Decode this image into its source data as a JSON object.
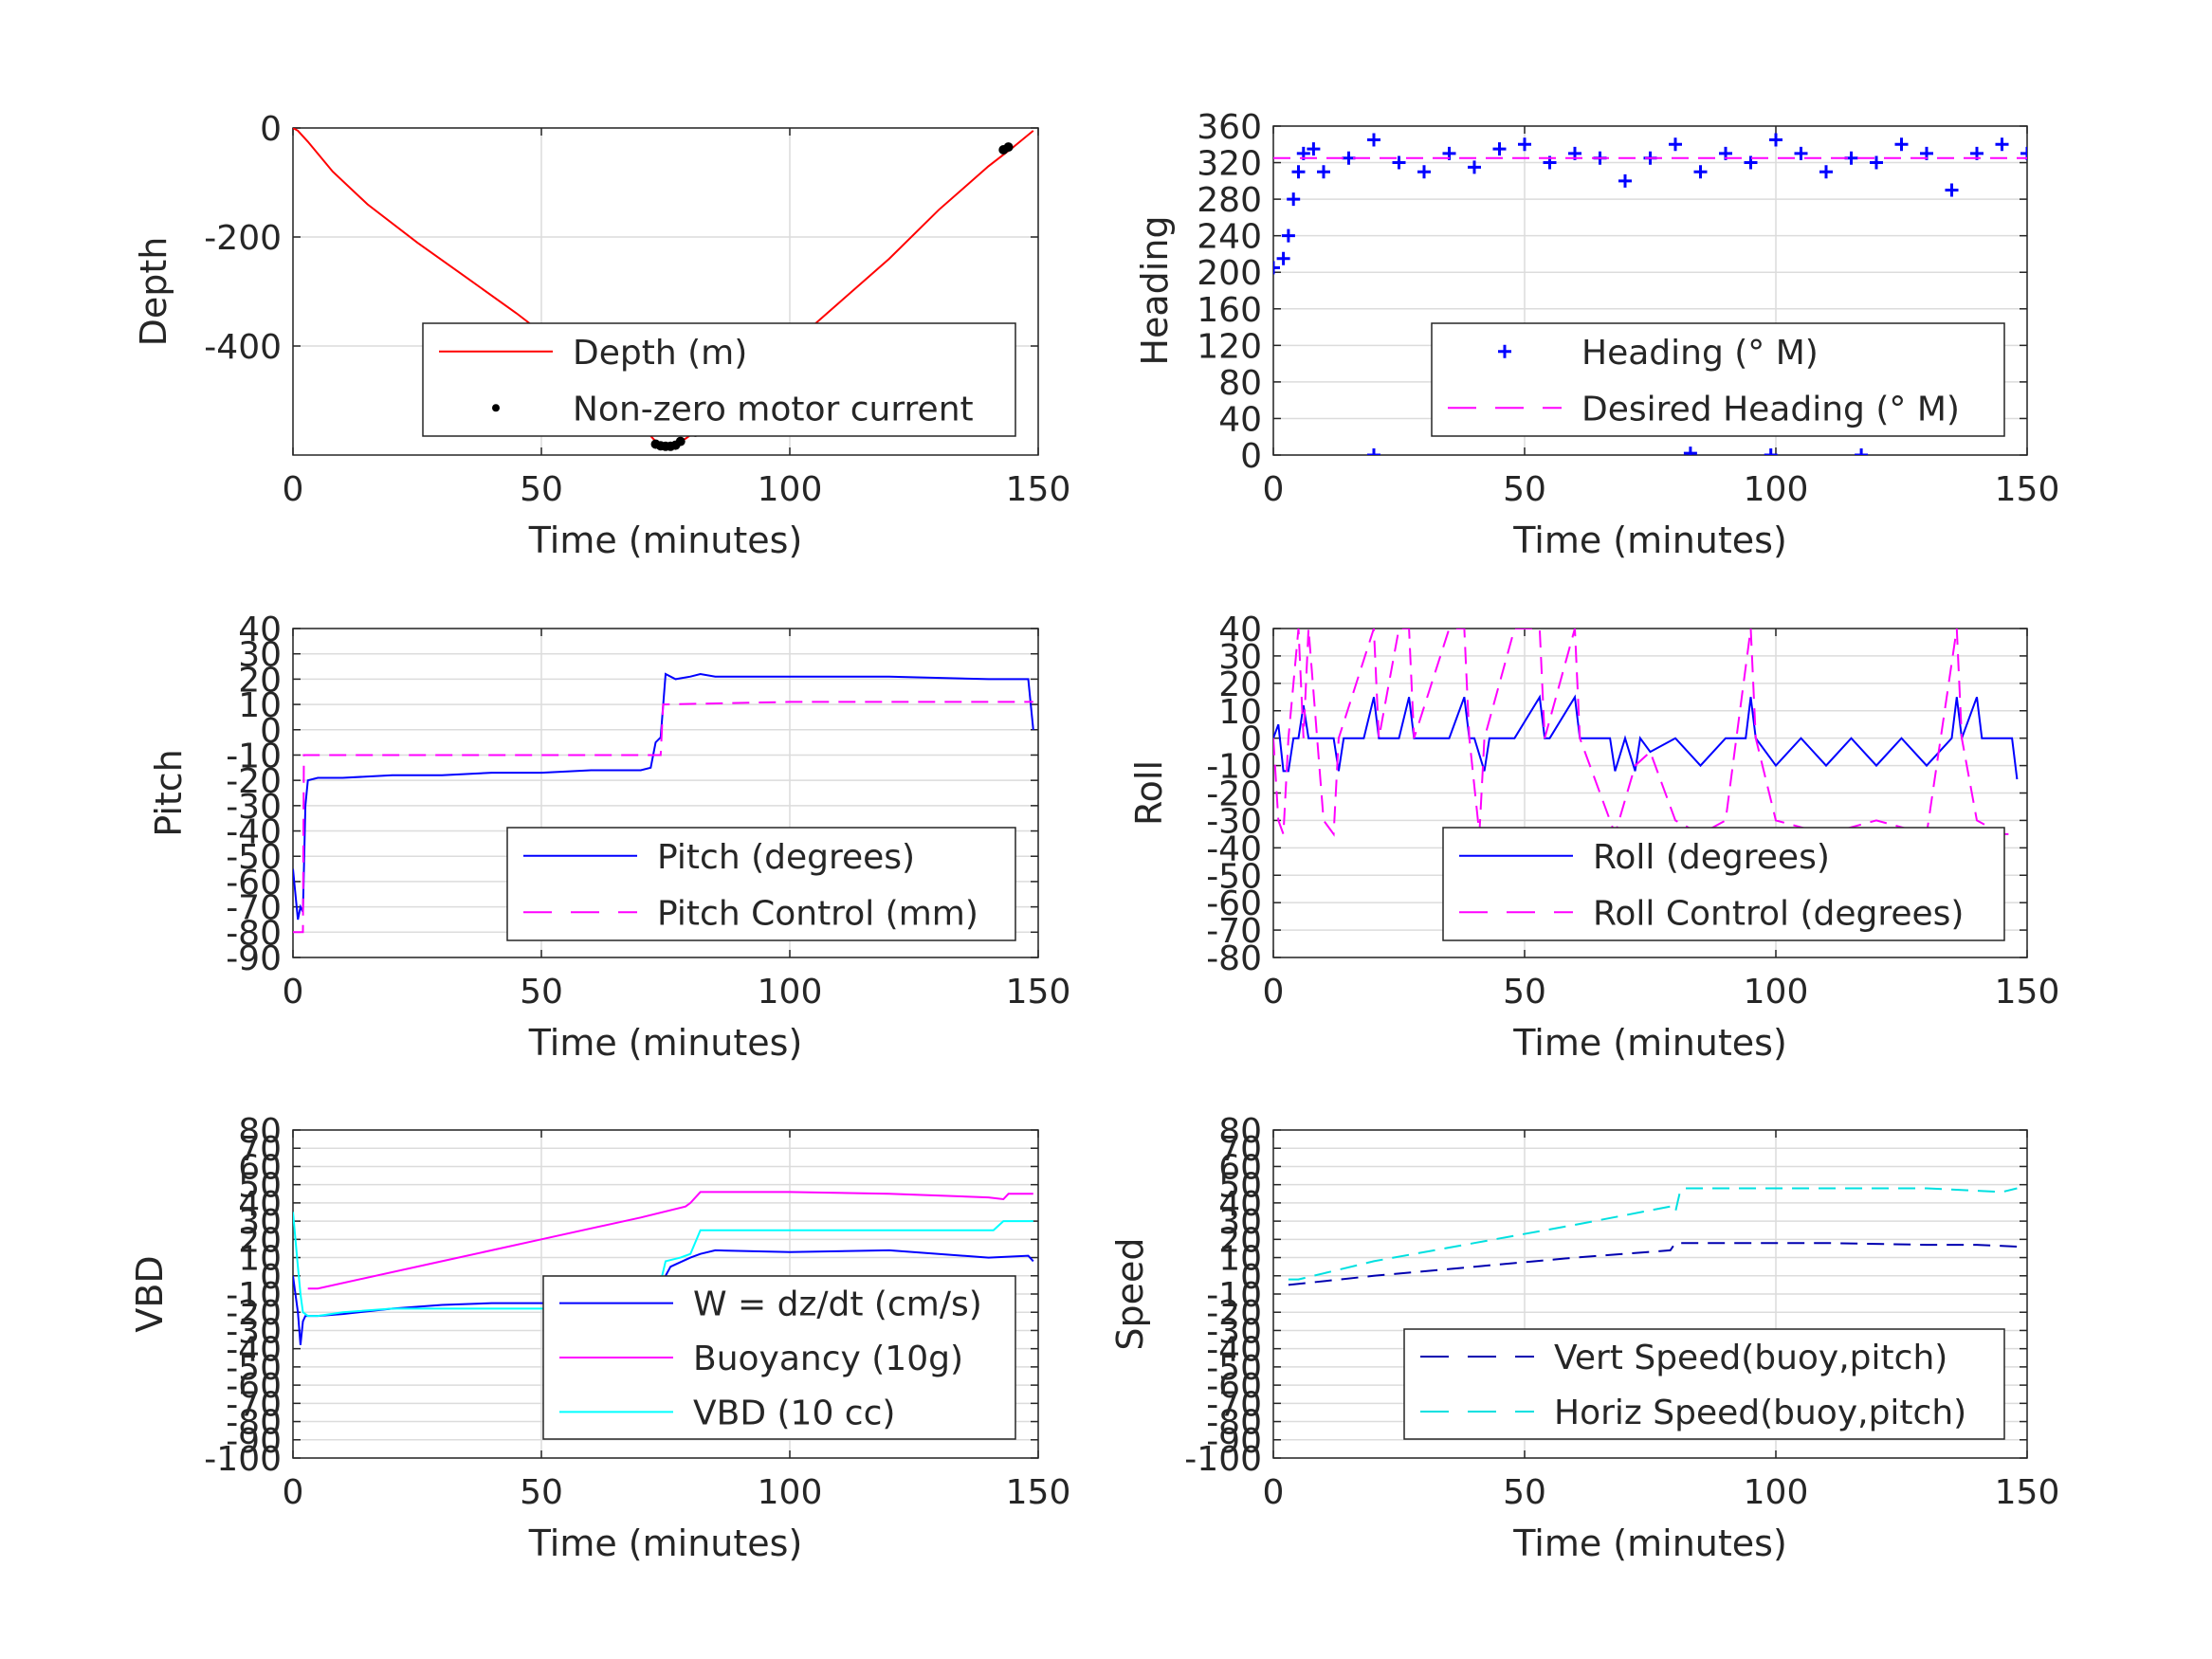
{
  "chart_data": [
    {
      "id": "depth",
      "type": "line",
      "xlabel": "Time (minutes)",
      "ylabel": "Depth",
      "xlim": [
        0,
        150
      ],
      "ylim": [
        -600,
        0
      ],
      "xticks": [
        0,
        50,
        100,
        150
      ],
      "yticks": [
        -400,
        -200,
        0
      ],
      "grid": true,
      "legend_position": "bottom-right",
      "series": [
        {
          "name": "Depth (m)",
          "color": "#ff0000",
          "style": "solid",
          "x": [
            0,
            1,
            3,
            8,
            15,
            25,
            35,
            45,
            55,
            65,
            70,
            73,
            75,
            77,
            79,
            82,
            90,
            100,
            110,
            120,
            130,
            140,
            145,
            149
          ],
          "y": [
            0,
            -5,
            -25,
            -80,
            -140,
            -210,
            -275,
            -340,
            -410,
            -490,
            -545,
            -575,
            -585,
            -580,
            -570,
            -550,
            -480,
            -400,
            -320,
            -240,
            -150,
            -70,
            -35,
            -5
          ]
        },
        {
          "name": "Non-zero motor current",
          "color": "#000000",
          "style": "dot",
          "x": [
            73,
            74,
            75,
            76,
            77,
            78,
            81,
            82,
            143,
            144
          ],
          "y": [
            -580,
            -583,
            -584,
            -584,
            -582,
            -575,
            -558,
            -552,
            -40,
            -35
          ]
        }
      ]
    },
    {
      "id": "heading",
      "type": "line",
      "xlabel": "Time (minutes)",
      "ylabel": "Heading",
      "xlim": [
        0,
        150
      ],
      "ylim": [
        0,
        360
      ],
      "xticks": [
        0,
        50,
        100,
        150
      ],
      "yticks": [
        0,
        40,
        80,
        120,
        160,
        200,
        240,
        280,
        320,
        360
      ],
      "grid": true,
      "legend_position": "bottom-right",
      "series": [
        {
          "name": "Heading (° M)",
          "color": "#0000ff",
          "style": "plus",
          "x": [
            0,
            2,
            3,
            4,
            5,
            6,
            8,
            10,
            15,
            20,
            25,
            30,
            35,
            40,
            45,
            50,
            55,
            60,
            65,
            70,
            75,
            80,
            85,
            90,
            95,
            100,
            105,
            110,
            115,
            120,
            125,
            130,
            135,
            140,
            145,
            150,
            20,
            83,
            99,
            117
          ],
          "y": [
            205,
            215,
            240,
            280,
            310,
            330,
            335,
            310,
            325,
            345,
            320,
            310,
            330,
            315,
            335,
            340,
            320,
            330,
            325,
            300,
            325,
            340,
            310,
            330,
            320,
            345,
            330,
            310,
            325,
            320,
            340,
            330,
            290,
            330,
            340,
            330,
            0,
            2,
            0,
            0
          ]
        },
        {
          "name": "Desired Heading (° M)",
          "color": "#ff00ff",
          "style": "dashed",
          "x": [
            0,
            150
          ],
          "y": [
            325,
            325
          ]
        }
      ]
    },
    {
      "id": "pitch",
      "type": "line",
      "xlabel": "Time (minutes)",
      "ylabel": "Pitch",
      "xlim": [
        0,
        150
      ],
      "ylim": [
        -90,
        40
      ],
      "xticks": [
        0,
        50,
        100,
        150
      ],
      "yticks": [
        -90,
        -80,
        -70,
        -60,
        -50,
        -40,
        -30,
        -20,
        -10,
        0,
        10,
        20,
        30,
        40
      ],
      "grid": true,
      "legend_position": "bottom-right",
      "series": [
        {
          "name": "Pitch (degrees)",
          "color": "#0000ff",
          "style": "solid",
          "x": [
            0,
            0.5,
            1,
            1.5,
            2,
            2.5,
            3,
            5,
            10,
            20,
            30,
            40,
            50,
            60,
            70,
            72,
            73,
            74,
            75,
            77,
            80,
            82,
            85,
            100,
            120,
            140,
            148,
            149
          ],
          "y": [
            -55,
            -65,
            -75,
            -70,
            -72,
            -30,
            -20,
            -19,
            -19,
            -18,
            -18,
            -17,
            -17,
            -16,
            -16,
            -15,
            -5,
            -3,
            22,
            20,
            21,
            22,
            21,
            21,
            21,
            20,
            20,
            0
          ]
        },
        {
          "name": "Pitch Control (mm)",
          "color": "#ff00ff",
          "style": "dashed",
          "x": [
            0,
            2,
            2.2,
            74,
            74.5,
            100,
            149
          ],
          "y": [
            -80,
            -80,
            -10,
            -10,
            10,
            11,
            11
          ]
        }
      ]
    },
    {
      "id": "roll",
      "type": "line",
      "xlabel": "Time (minutes)",
      "ylabel": "Roll",
      "xlim": [
        0,
        150
      ],
      "ylim": [
        -80,
        40
      ],
      "xticks": [
        0,
        50,
        100,
        150
      ],
      "yticks": [
        -80,
        -70,
        -60,
        -50,
        -40,
        -30,
        -20,
        -10,
        0,
        10,
        20,
        30,
        40
      ],
      "grid": true,
      "legend_position": "bottom-right",
      "series": [
        {
          "name": "Roll (degrees)",
          "color": "#0000ff",
          "style": "solid",
          "x": [
            0,
            1,
            2,
            3,
            4,
            5,
            6,
            7,
            8,
            9,
            12,
            13,
            14,
            18,
            20,
            21,
            22,
            25,
            27,
            28,
            35,
            38,
            39,
            40,
            42,
            43,
            48,
            53,
            54,
            55,
            60,
            61,
            62,
            65,
            67,
            68,
            70,
            72,
            73,
            75,
            80,
            85,
            90,
            94,
            95,
            96,
            100,
            105,
            110,
            115,
            120,
            125,
            130,
            135,
            136,
            137,
            140,
            141,
            145,
            147,
            148
          ],
          "y": [
            0,
            5,
            -12,
            -12,
            0,
            0,
            12,
            0,
            0,
            0,
            0,
            -12,
            0,
            0,
            15,
            0,
            0,
            0,
            15,
            0,
            0,
            15,
            0,
            0,
            -12,
            0,
            0,
            15,
            0,
            0,
            15,
            0,
            0,
            0,
            0,
            -12,
            0,
            -12,
            0,
            -5,
            0,
            -10,
            0,
            0,
            15,
            0,
            -10,
            0,
            -10,
            0,
            -10,
            0,
            -10,
            0,
            15,
            0,
            15,
            0,
            0,
            0,
            -15
          ]
        },
        {
          "name": "Roll Control (degrees)",
          "color": "#ff00ff",
          "style": "dashed",
          "x": [
            0,
            1,
            2,
            3,
            5,
            6,
            7,
            10,
            12,
            13,
            20,
            21,
            25,
            27,
            28,
            35,
            38,
            39,
            41,
            42,
            48,
            53,
            54,
            60,
            61,
            68,
            72,
            75,
            80,
            85,
            90,
            95,
            96,
            100,
            110,
            120,
            130,
            136,
            137,
            140,
            145,
            148
          ],
          "y": [
            0,
            -30,
            -35,
            0,
            40,
            0,
            40,
            -30,
            -35,
            0,
            40,
            0,
            40,
            40,
            0,
            40,
            40,
            0,
            -35,
            0,
            40,
            40,
            0,
            40,
            0,
            -35,
            -10,
            -5,
            -30,
            -35,
            -30,
            40,
            0,
            -30,
            -35,
            -30,
            -35,
            40,
            0,
            -30,
            -35,
            -35
          ]
        }
      ]
    },
    {
      "id": "vbd",
      "type": "line",
      "xlabel": "Time (minutes)",
      "ylabel": "VBD",
      "xlim": [
        0,
        150
      ],
      "ylim": [
        -100,
        80
      ],
      "xticks": [
        0,
        50,
        100,
        150
      ],
      "yticks": [
        -100,
        -90,
        -80,
        -70,
        -60,
        -50,
        -40,
        -30,
        -20,
        -10,
        0,
        10,
        20,
        30,
        40,
        50,
        60,
        70,
        80
      ],
      "grid": true,
      "legend_position": "bottom-right",
      "series": [
        {
          "name": "W = dz/dt (cm/s)",
          "color": "#0000ff",
          "style": "solid",
          "x": [
            0,
            0.5,
            1,
            1.5,
            2,
            2.5,
            3,
            5,
            10,
            20,
            30,
            40,
            50,
            60,
            70,
            72,
            74,
            76,
            80,
            82,
            85,
            100,
            120,
            140,
            148,
            149
          ],
          "y": [
            0,
            -10,
            -20,
            -38,
            -25,
            -22,
            -22,
            -22,
            -21,
            -18,
            -16,
            -15,
            -15,
            -15,
            -15,
            -14,
            -5,
            5,
            10,
            12,
            14,
            13,
            14,
            10,
            11,
            8
          ]
        },
        {
          "name": "Buoyancy (10g)",
          "color": "#ff00ff",
          "style": "solid",
          "x": [
            3,
            5,
            30,
            50,
            70,
            79,
            80,
            82,
            100,
            120,
            140,
            143,
            144,
            149
          ],
          "y": [
            -7,
            -7,
            8,
            20,
            32,
            38,
            40,
            46,
            46,
            45,
            43,
            42,
            45,
            45
          ]
        },
        {
          "name": "VBD (10 cc)",
          "color": "#00ffff",
          "style": "solid",
          "x": [
            0,
            0.5,
            1,
            1.5,
            2,
            3,
            5,
            10,
            20,
            70,
            73,
            75,
            78,
            80,
            82,
            85,
            100,
            140,
            141,
            143,
            149
          ],
          "y": [
            35,
            20,
            5,
            -10,
            -20,
            -22,
            -22,
            -20,
            -18,
            -18,
            -15,
            8,
            10,
            12,
            25,
            25,
            25,
            25,
            25,
            30,
            30
          ]
        }
      ]
    },
    {
      "id": "speed",
      "type": "line",
      "xlabel": "Time (minutes)",
      "ylabel": "Speed",
      "xlim": [
        0,
        150
      ],
      "ylim": [
        -100,
        80
      ],
      "xticks": [
        0,
        50,
        100,
        150
      ],
      "yticks": [
        -100,
        -90,
        -80,
        -70,
        -60,
        -50,
        -40,
        -30,
        -20,
        -10,
        0,
        10,
        20,
        30,
        40,
        50,
        60,
        70,
        80
      ],
      "grid": true,
      "legend_position": "bottom-right",
      "series": [
        {
          "name": "Vert Speed(buoy,pitch)",
          "color": "#0000b0",
          "style": "dashed",
          "x": [
            3,
            20,
            40,
            60,
            79,
            80,
            81,
            82,
            90,
            110,
            130,
            140,
            148
          ],
          "y": [
            -5,
            0,
            5,
            10,
            14,
            18,
            18,
            18,
            18,
            18,
            17,
            17,
            16
          ]
        },
        {
          "name": "Horiz Speed(buoy,pitch)",
          "color": "#00e0e0",
          "style": "dashed",
          "x": [
            3,
            5,
            20,
            40,
            60,
            79,
            80,
            81,
            82,
            90,
            110,
            130,
            145,
            148
          ],
          "y": [
            -2,
            -2,
            8,
            18,
            28,
            38,
            35,
            47,
            48,
            48,
            48,
            48,
            46,
            48
          ]
        }
      ]
    }
  ]
}
